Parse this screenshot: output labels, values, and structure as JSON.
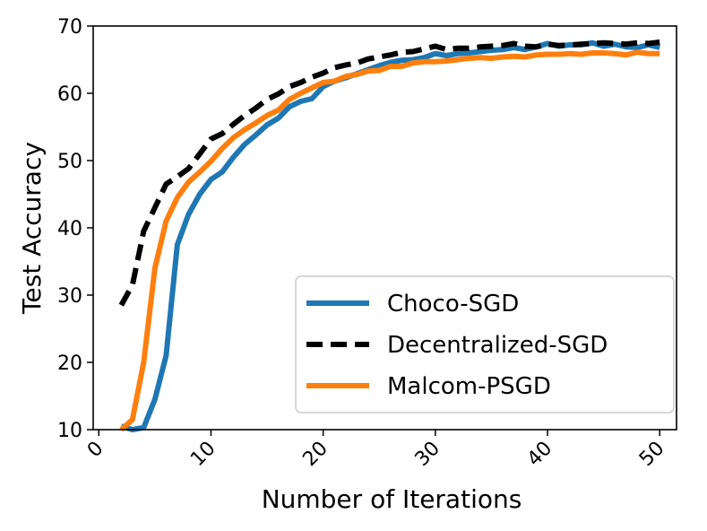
{
  "chart_data": {
    "type": "line",
    "title": "",
    "xlabel": "Number of Iterations",
    "ylabel": "Test Accuracy",
    "xlim": [
      -0.5,
      51.5
    ],
    "ylim": [
      10,
      70
    ],
    "xticks": [
      0,
      10,
      20,
      30,
      40,
      50
    ],
    "yticks": [
      10,
      20,
      30,
      40,
      50,
      60,
      70
    ],
    "x": [
      2,
      3,
      4,
      5,
      6,
      7,
      8,
      9,
      10,
      11,
      12,
      13,
      14,
      15,
      16,
      17,
      18,
      19,
      20,
      21,
      22,
      23,
      24,
      25,
      26,
      27,
      28,
      29,
      30,
      31,
      32,
      33,
      34,
      35,
      36,
      37,
      38,
      39,
      40,
      41,
      42,
      43,
      44,
      45,
      46,
      47,
      48,
      49,
      50
    ],
    "legend_position": "lower-right",
    "series": [
      {
        "name": "Choco-SGD",
        "color": "#1f77b4",
        "style": "solid",
        "values": [
          10.5,
          10.0,
          10.3,
          14.5,
          21.0,
          37.5,
          42.0,
          45.0,
          47.2,
          48.3,
          50.5,
          52.4,
          53.8,
          55.3,
          56.3,
          58.0,
          58.8,
          59.2,
          61.0,
          61.8,
          62.3,
          62.9,
          63.5,
          64.1,
          64.6,
          64.9,
          65.0,
          65.3,
          65.9,
          65.6,
          65.9,
          66.0,
          66.2,
          66.4,
          66.5,
          66.8,
          66.5,
          66.9,
          67.4,
          67.0,
          67.2,
          67.2,
          67.5,
          67.0,
          67.3,
          66.9,
          66.8,
          67.2,
          66.8
        ]
      },
      {
        "name": "Decentralized-SGD",
        "color": "#000000",
        "style": "dashed",
        "values": [
          28.5,
          31.5,
          39.5,
          43.0,
          46.5,
          47.6,
          48.8,
          51.0,
          53.2,
          54.0,
          55.4,
          56.7,
          57.8,
          59.1,
          59.9,
          61.0,
          61.6,
          62.4,
          63.0,
          63.8,
          64.2,
          64.5,
          65.1,
          65.4,
          65.7,
          66.1,
          66.2,
          66.6,
          67.0,
          66.5,
          66.7,
          66.7,
          66.9,
          67.0,
          67.1,
          67.4,
          67.0,
          66.9,
          67.3,
          67.1,
          67.2,
          67.3,
          67.4,
          67.5,
          67.4,
          67.3,
          67.5,
          67.4,
          67.6
        ]
      },
      {
        "name": "Malcom-PSGD",
        "color": "#ff7f0e",
        "style": "solid",
        "values": [
          10.0,
          11.5,
          20.0,
          34.0,
          41.0,
          44.5,
          46.8,
          48.3,
          49.9,
          51.8,
          53.4,
          54.6,
          55.6,
          56.7,
          57.5,
          59.1,
          60.0,
          60.8,
          61.6,
          61.8,
          62.5,
          62.8,
          63.3,
          63.4,
          64.0,
          64.0,
          64.5,
          64.7,
          64.7,
          64.8,
          65.0,
          65.2,
          65.3,
          65.2,
          65.4,
          65.5,
          65.4,
          65.7,
          65.8,
          65.8,
          65.9,
          65.8,
          66.0,
          66.0,
          65.9,
          65.7,
          66.1,
          65.9,
          65.9
        ]
      }
    ]
  }
}
